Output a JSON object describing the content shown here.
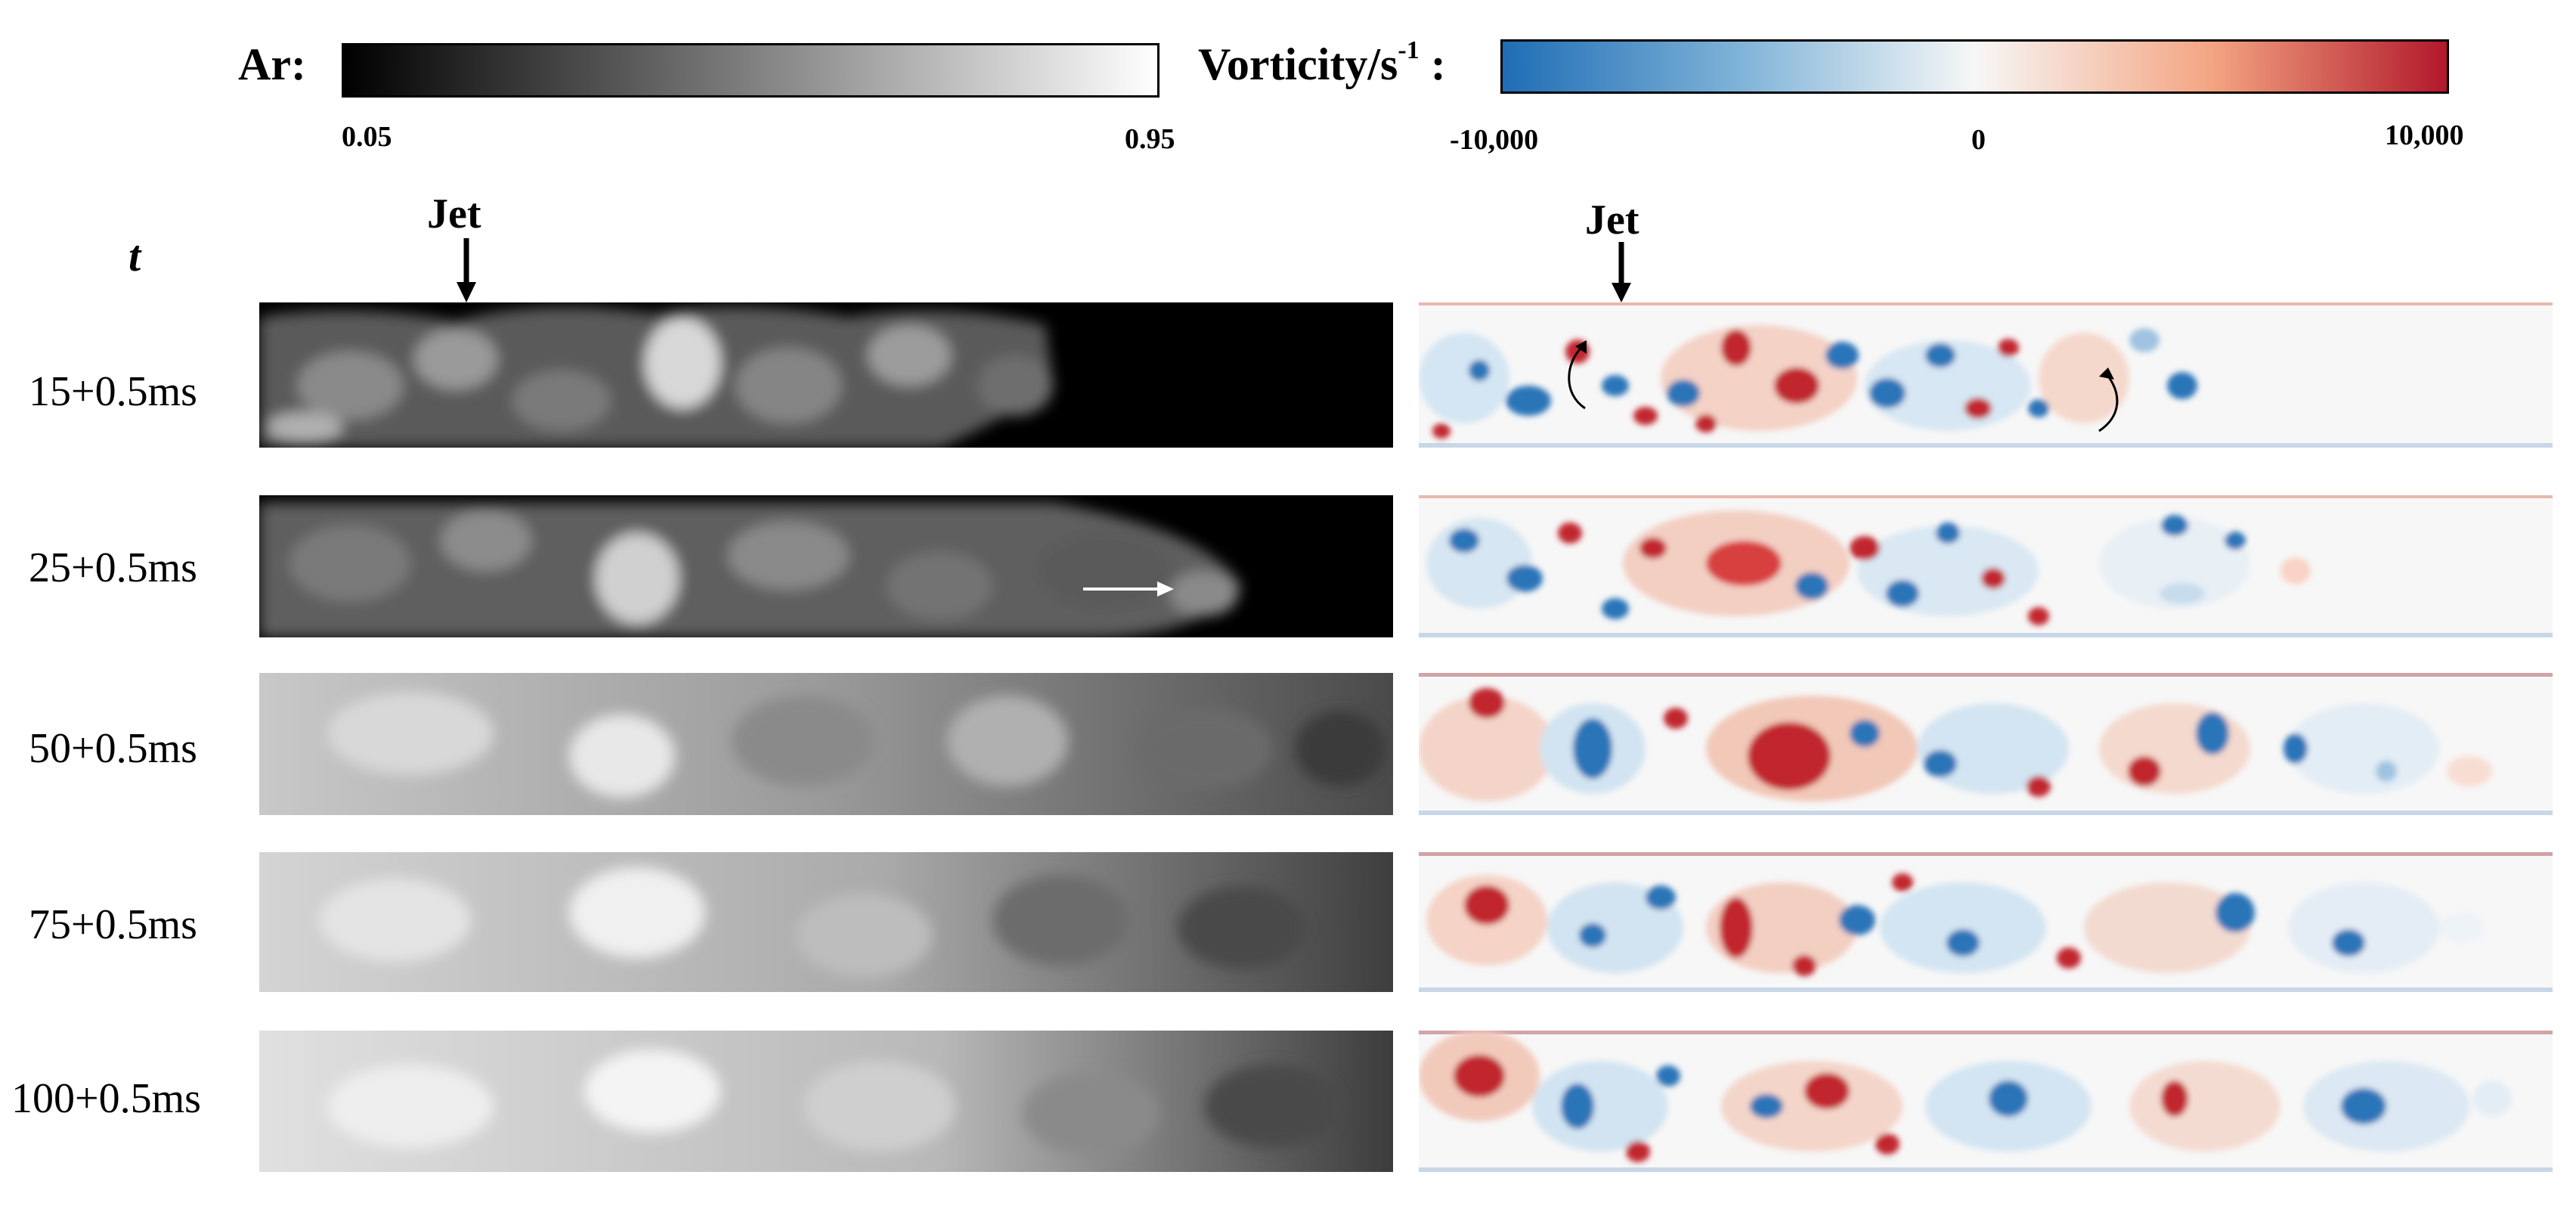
{
  "colorbars": {
    "ar": {
      "label": "Ar:",
      "min": "0.05",
      "max": "0.95",
      "colors": [
        "#000000",
        "#ffffff"
      ]
    },
    "vorticity": {
      "label_main": "Vorticity/s",
      "label_sup": "-1",
      "label_colon": " :",
      "min": "-10,000",
      "mid": "0",
      "max": "10,000",
      "colors": [
        "#1f6db5",
        "#f7f7f7",
        "#b2182b"
      ]
    }
  },
  "column_header": "t",
  "jet_label": "Jet",
  "rows": [
    {
      "time": "15+0.5ms"
    },
    {
      "time": "25+0.5ms"
    },
    {
      "time": "50+0.5ms"
    },
    {
      "time": "75+0.5ms"
    },
    {
      "time": "100+0.5ms"
    }
  ]
}
